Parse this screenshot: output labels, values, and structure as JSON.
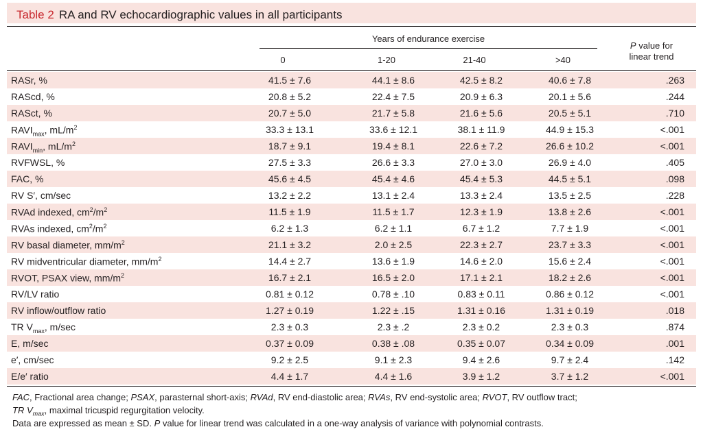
{
  "table": {
    "label": "Table 2",
    "title": "RA and RV echocardiographic values in all participants",
    "header": {
      "group": "Years of endurance exercise",
      "columns": [
        "0",
        "1-20",
        "21-40",
        ">40"
      ],
      "p_value_line1": "P value for",
      "p_value_line2": "linear trend"
    },
    "rows": [
      {
        "label": "RASr, %",
        "v": [
          "41.5 ± 7.6",
          "44.1 ± 8.6",
          "42.5 ± 8.2",
          "40.6 ± 7.8"
        ],
        "p": ".263"
      },
      {
        "label": "RAScd, %",
        "v": [
          "20.8 ± 5.2",
          "22.4 ± 7.5",
          "20.9 ± 6.3",
          "20.1 ± 5.6"
        ],
        "p": ".244"
      },
      {
        "label": "RASct, %",
        "v": [
          "20.7 ± 5.0",
          "21.7 ± 5.8",
          "21.6 ± 5.6",
          "20.5 ± 5.1"
        ],
        "p": ".710"
      },
      {
        "label": "RAVI",
        "sub": "max",
        "after": ", mL/m",
        "sup": "2",
        "v": [
          "33.3 ± 13.1",
          "33.6 ± 12.1",
          "38.1 ± 11.9",
          "44.9 ± 15.3"
        ],
        "p": "<.001"
      },
      {
        "label": "RAVI",
        "sub": "min",
        "after": ", mL/m",
        "sup": "2",
        "v": [
          "18.7 ± 9.1",
          "19.4 ± 8.1",
          "22.6 ± 7.2",
          "26.6 ± 10.2"
        ],
        "p": "<.001"
      },
      {
        "label": "RVFWSL, %",
        "v": [
          "27.5 ± 3.3",
          "26.6 ± 3.3",
          "27.0 ± 3.0",
          "26.9 ± 4.0"
        ],
        "p": ".405"
      },
      {
        "label": "FAC, %",
        "v": [
          "45.6 ± 4.5",
          "45.4 ± 4.6",
          "45.4 ± 5.3",
          "44.5 ± 5.1"
        ],
        "p": ".098"
      },
      {
        "label": "RV S′, cm/sec",
        "v": [
          "13.2 ± 2.2",
          "13.1 ± 2.4",
          "13.3 ± 2.4",
          "13.5 ± 2.5"
        ],
        "p": ".228"
      },
      {
        "label": "RVAd indexed, cm",
        "sup2": "2",
        "after2": "/m",
        "sup": "2",
        "v": [
          "11.5 ± 1.9",
          "11.5 ± 1.7",
          "12.3 ± 1.9",
          "13.8 ± 2.6"
        ],
        "p": "<.001"
      },
      {
        "label": "RVAs indexed, cm",
        "sup2": "2",
        "after2": "/m",
        "sup": "2",
        "v": [
          "6.2 ± 1.3",
          "6.2 ± 1.1",
          "6.7 ± 1.2",
          "7.7 ± 1.9"
        ],
        "p": "<.001"
      },
      {
        "label": "RV basal diameter, mm/m",
        "sup": "2",
        "v": [
          "21.1 ± 3.2",
          "2.0 ± 2.5",
          "22.3 ± 2.7",
          "23.7 ± 3.3"
        ],
        "p": "<.001"
      },
      {
        "label": "RV midventricular diameter, mm/m",
        "sup": "2",
        "v": [
          "14.4 ± 2.7",
          "13.6 ± 1.9",
          "14.6 ± 2.0",
          "15.6 ± 2.4"
        ],
        "p": "<.001"
      },
      {
        "label": "RVOT, PSAX view, mm/m",
        "sup": "2",
        "v": [
          "16.7 ± 2.1",
          "16.5 ± 2.0",
          "17.1 ± 2.1",
          "18.2 ± 2.6"
        ],
        "p": "<.001"
      },
      {
        "label": "RV/LV ratio",
        "v": [
          "0.81 ± 0.12",
          "0.78 ± .10",
          "0.83 ± 0.11",
          "0.86 ± 0.12"
        ],
        "p": "<.001"
      },
      {
        "label": "RV inflow/outflow ratio",
        "v": [
          "1.27 ± 0.19",
          "1.22 ± .15",
          "1.31 ± 0.16",
          "1.31 ± 0.19"
        ],
        "p": ".018"
      },
      {
        "label": "TR V",
        "sub": "max",
        "after": ", m/sec",
        "v": [
          "2.3 ± 0.3",
          "2.3 ± .2",
          "2.3 ± 0.2",
          "2.3 ± 0.3"
        ],
        "p": ".874"
      },
      {
        "label": "E, m/sec",
        "v": [
          "0.37 ± 0.09",
          "0.38 ± .08",
          "0.35 ± 0.07",
          "0.34 ± 0.09"
        ],
        "p": ".001"
      },
      {
        "label": "e′, cm/sec",
        "v": [
          "9.2 ± 2.5",
          "9.1 ± 2.3",
          "9.4 ± 2.6",
          "9.7 ± 2.4"
        ],
        "p": ".142"
      },
      {
        "label": "E/e′ ratio",
        "v": [
          "4.4 ± 1.7",
          "4.4 ± 1.6",
          "3.9 ± 1.2",
          "3.7 ± 1.2"
        ],
        "p": "<.001"
      }
    ],
    "footnotes": {
      "line1": [
        {
          "i": "FAC",
          "t": ", Fractional area change; "
        },
        {
          "i": "PSAX",
          "t": ", parasternal short-axis; "
        },
        {
          "i": "RVAd",
          "t": ", RV end-diastolic area; "
        },
        {
          "i": "RVAs",
          "t": ", RV end-systolic area; "
        },
        {
          "i": "RVOT",
          "t": ", RV outflow tract;"
        }
      ],
      "line2_italic": "TR V",
      "line2_sub": "max",
      "line2_text": ", maximal tricuspid regurgitation velocity.",
      "line3_a": "Data are expressed as mean ± SD. ",
      "line3_italic": "P",
      "line3_b": " value for linear trend was calculated in a one-way analysis of variance with polynomial contrasts."
    }
  }
}
